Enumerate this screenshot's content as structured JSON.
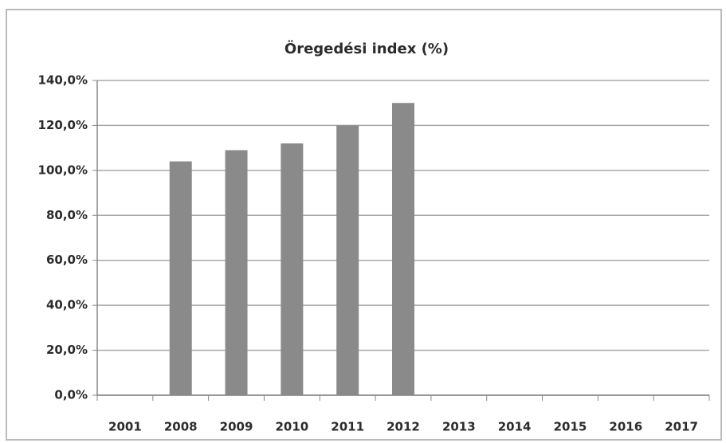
{
  "chart_data": {
    "type": "bar",
    "title": "Öregedési index (%)",
    "categories": [
      "2001",
      "2008",
      "2009",
      "2010",
      "2011",
      "2012",
      "2013",
      "2014",
      "2015",
      "2016",
      "2017"
    ],
    "values": [
      null,
      104,
      109,
      112,
      120,
      130,
      null,
      null,
      null,
      null,
      null
    ],
    "color": "#8a8a8a",
    "ylim": [
      0,
      140
    ],
    "yticks": [
      {
        "value": 0,
        "label": "0,0%"
      },
      {
        "value": 20,
        "label": "20,0%"
      },
      {
        "value": 40,
        "label": "40,0%"
      },
      {
        "value": 60,
        "label": "60,0%"
      },
      {
        "value": 80,
        "label": "80,0%"
      },
      {
        "value": 100,
        "label": "100,0%"
      },
      {
        "value": 120,
        "label": "120,0%"
      },
      {
        "value": 140,
        "label": "140,0%"
      }
    ],
    "grid": true
  }
}
